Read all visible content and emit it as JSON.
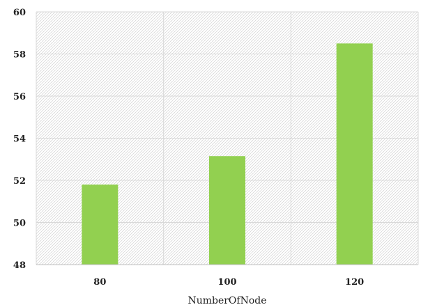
{
  "chart_data": {
    "type": "bar",
    "categories": [
      "80",
      "100",
      "120"
    ],
    "values": [
      51.8,
      53.15,
      58.5
    ],
    "xlabel": "NumberOfNode",
    "ylabel": "",
    "ylim": [
      48,
      60
    ],
    "yticks": [
      "48",
      "50",
      "52",
      "54",
      "56",
      "58",
      "60"
    ],
    "grid": true,
    "legend": "none",
    "colors": {
      "bar": "#92d050",
      "grid": "#d9d9d9",
      "axis": "#bfbfbf",
      "hatch": "#d0d0d0"
    }
  }
}
